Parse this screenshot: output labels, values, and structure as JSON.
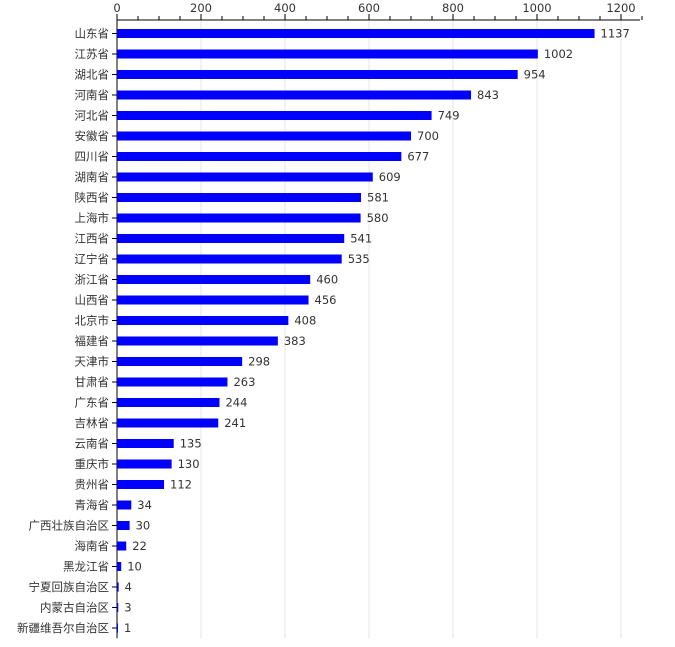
{
  "colors": {
    "bar": "#0000ff",
    "axis": "#000000",
    "grid": "#e6e6e6",
    "text": "#333333"
  },
  "chart_data": {
    "type": "bar",
    "orientation": "horizontal",
    "title": "",
    "xlabel": "",
    "ylabel": "",
    "xlim": [
      0,
      1250
    ],
    "x_ticks": [
      0,
      200,
      400,
      600,
      800,
      1000,
      1200
    ],
    "axis_position": "top",
    "grid": true,
    "legend": "none",
    "categories": [
      "山东省",
      "江苏省",
      "湖北省",
      "河南省",
      "河北省",
      "安徽省",
      "四川省",
      "湖南省",
      "陕西省",
      "上海市",
      "江西省",
      "辽宁省",
      "浙江省",
      "山西省",
      "北京市",
      "福建省",
      "天津市",
      "甘肃省",
      "广东省",
      "吉林省",
      "云南省",
      "重庆市",
      "贵州省",
      "青海省",
      "广西壮族自治区",
      "海南省",
      "黑龙江省",
      "宁夏回族自治区",
      "内蒙古自治区",
      "新疆维吾尔自治区"
    ],
    "values": [
      1137,
      1002,
      954,
      843,
      749,
      700,
      677,
      609,
      581,
      580,
      541,
      535,
      460,
      456,
      408,
      383,
      298,
      263,
      244,
      241,
      135,
      130,
      112,
      34,
      30,
      22,
      10,
      4,
      3,
      1
    ]
  }
}
